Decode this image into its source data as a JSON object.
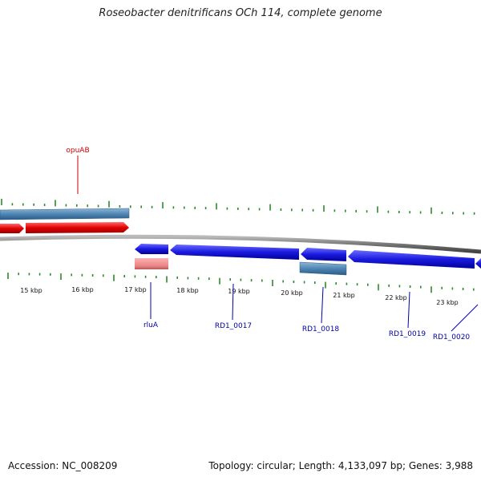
{
  "title": "Roseobacter denitrificans OCh 114, complete genome",
  "footer": {
    "accession": "Accession: NC_008209",
    "topology": "Topology: circular; Length: 4,133,097 bp; Genes: 3,988"
  },
  "colors": {
    "forward_gene": "#e10000",
    "reverse_gene": "#1a1adf",
    "forward_label": "#cc0000",
    "reverse_label": "#0000aa",
    "feature_bar": "#4f86b4",
    "pseudo_bar": "#f08a8a",
    "tick": "#2b8a2b",
    "backbone": "#888888"
  },
  "kbp_labels": [
    "15 kbp",
    "16 kbp",
    "17 kbp",
    "18 kbp",
    "19 kbp",
    "20 kbp",
    "21 kbp",
    "22 kbp",
    "23 kbp"
  ],
  "gene_labels": [
    {
      "id": "opuab",
      "text": "opuAB",
      "strand": "forward"
    },
    {
      "id": "rlua",
      "text": "rluA",
      "strand": "reverse"
    },
    {
      "id": "rd1-0017",
      "text": "RD1_0017",
      "strand": "reverse"
    },
    {
      "id": "rd1-0018",
      "text": "RD1_0018",
      "strand": "reverse"
    },
    {
      "id": "rd1-0019",
      "text": "RD1_0019",
      "strand": "reverse"
    },
    {
      "id": "rd1-0020",
      "text": "RD1_0020",
      "strand": "reverse"
    }
  ]
}
